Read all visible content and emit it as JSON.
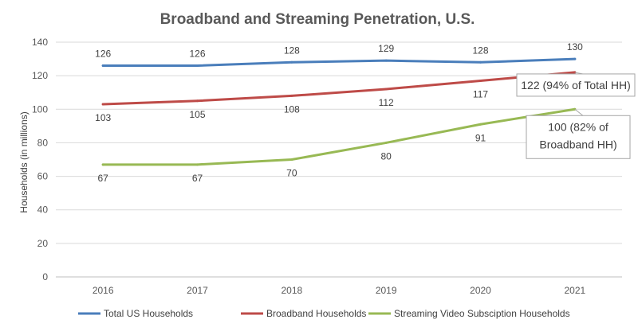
{
  "chart_data": {
    "type": "line",
    "title": "Broadband and Streaming Penetration, U.S.",
    "xlabel": "",
    "ylabel": "Households (in millions)",
    "categories": [
      "2016",
      "2017",
      "2018",
      "2019",
      "2020",
      "2021"
    ],
    "ylim": [
      0,
      140
    ],
    "yticks": [
      0,
      20,
      40,
      60,
      80,
      100,
      120,
      140
    ],
    "grid": true,
    "legend_position": "bottom",
    "series": [
      {
        "name": "Total US Households",
        "color": "#4a7ebb",
        "values": [
          126,
          126,
          128,
          129,
          128,
          130
        ]
      },
      {
        "name": "Broadband Households",
        "color": "#be4b48",
        "values": [
          103,
          105,
          108,
          112,
          117,
          122
        ]
      },
      {
        "name": "Streaming Video Subsciption Households",
        "color": "#98b954",
        "values": [
          67,
          67,
          70,
          80,
          91,
          100
        ]
      }
    ],
    "callouts": [
      {
        "series": 1,
        "index": 5,
        "lines": [
          "122 (94% of Total HH)"
        ]
      },
      {
        "series": 2,
        "index": 5,
        "lines": [
          "100 (82% of",
          "Broadband HH)"
        ]
      }
    ]
  }
}
